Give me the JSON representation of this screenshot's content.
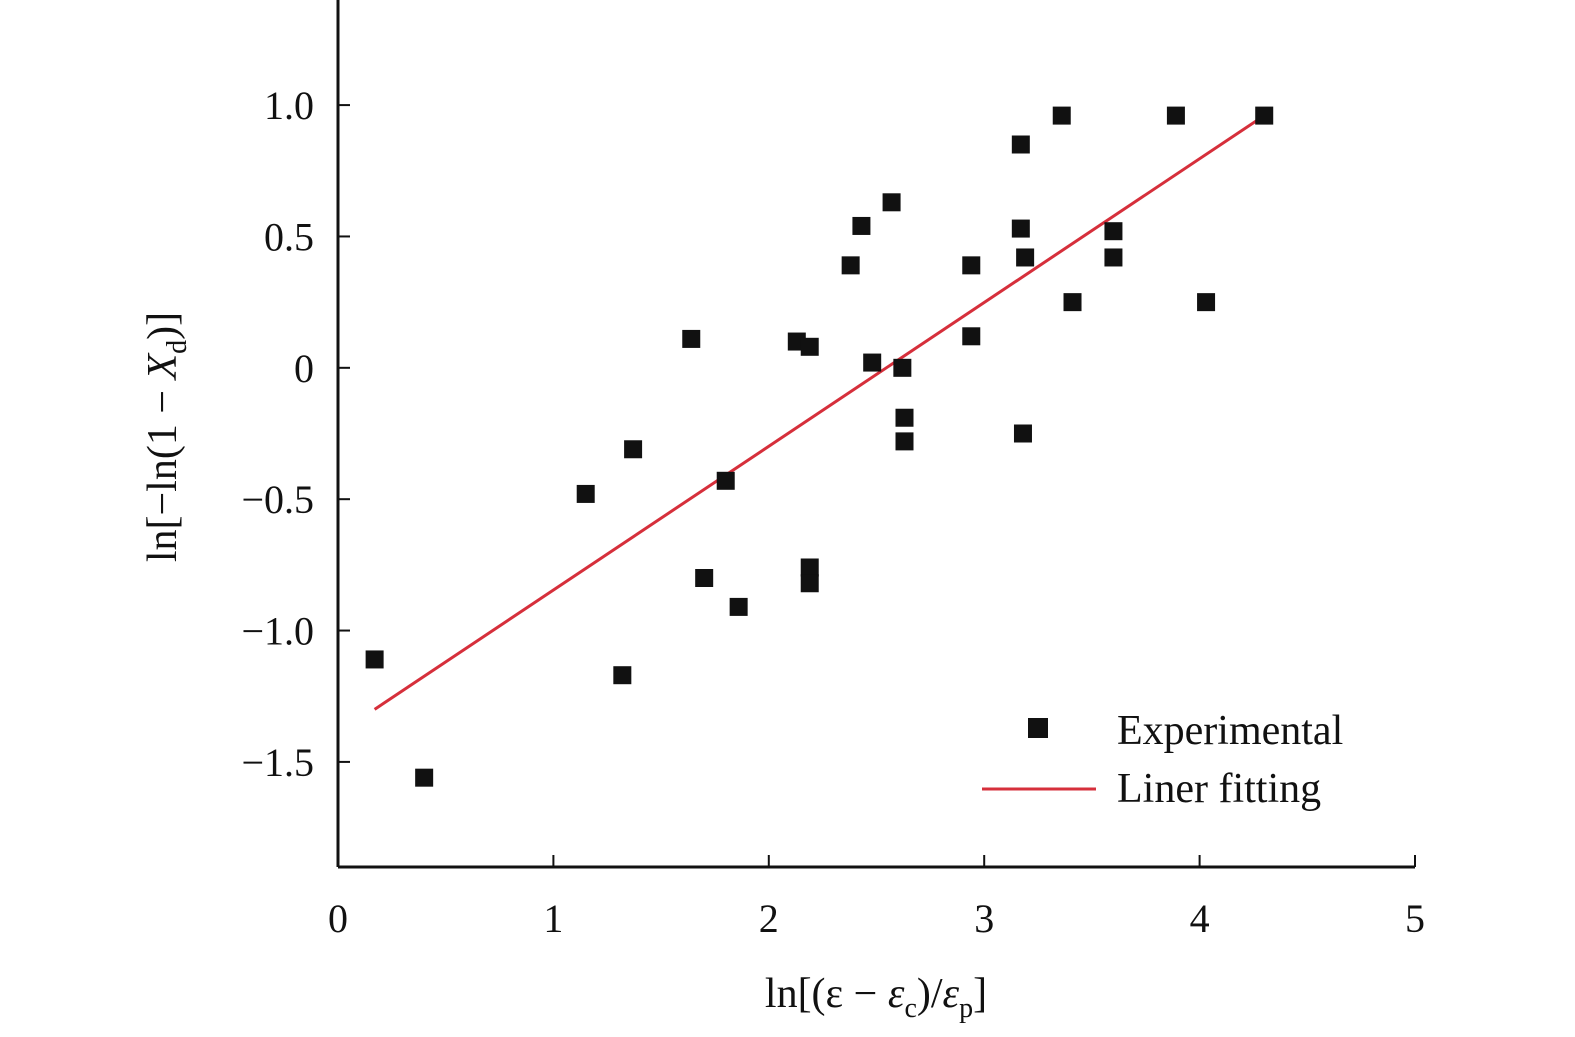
{
  "chart_data": {
    "type": "scatter",
    "title": "",
    "xlabel": {
      "prefix": "ln[(ε − ",
      "eps": "ε",
      "eps_sub_c": "c",
      "middle": ")/",
      "eps2": "ε",
      "eps_sub_p": "p",
      "suffix": "]"
    },
    "ylabel": {
      "prefix": "ln[−ln(1 − ",
      "var": "X",
      "var_sub": "d",
      "suffix": ")]"
    },
    "xlim": [
      0,
      5
    ],
    "ylim": [
      -1.9,
      1.4
    ],
    "xticks": [
      0,
      1,
      2,
      3,
      4,
      5
    ],
    "xtick_labels": [
      "0",
      "1",
      "2",
      "3",
      "4",
      "5"
    ],
    "yticks": [
      1.0,
      0.5,
      0,
      -0.5,
      -1.0,
      -1.5
    ],
    "ytick_labels": [
      "1.0",
      "0.5",
      "0",
      "−0.5",
      "−1.0",
      "−1.5"
    ],
    "grid": false,
    "legend_position": "bottom-right",
    "series": [
      {
        "name": "Experimental",
        "type": "scatter",
        "marker": "square",
        "color": "#111111",
        "points": [
          {
            "x": 0.17,
            "y": -1.11
          },
          {
            "x": 0.4,
            "y": -1.56
          },
          {
            "x": 1.15,
            "y": -0.48
          },
          {
            "x": 1.32,
            "y": -1.17
          },
          {
            "x": 1.37,
            "y": -0.31
          },
          {
            "x": 1.64,
            "y": 0.11
          },
          {
            "x": 1.7,
            "y": -0.8
          },
          {
            "x": 1.8,
            "y": -0.43
          },
          {
            "x": 1.86,
            "y": -0.91
          },
          {
            "x": 2.13,
            "y": 0.1
          },
          {
            "x": 2.19,
            "y": 0.08
          },
          {
            "x": 2.19,
            "y": -0.76
          },
          {
            "x": 2.19,
            "y": -0.82
          },
          {
            "x": 2.38,
            "y": 0.39
          },
          {
            "x": 2.43,
            "y": 0.54
          },
          {
            "x": 2.48,
            "y": 0.02
          },
          {
            "x": 2.57,
            "y": 0.63
          },
          {
            "x": 2.62,
            "y": 0.0
          },
          {
            "x": 2.63,
            "y": -0.19
          },
          {
            "x": 2.63,
            "y": -0.28
          },
          {
            "x": 2.94,
            "y": 0.39
          },
          {
            "x": 2.94,
            "y": 0.12
          },
          {
            "x": 3.17,
            "y": 0.85
          },
          {
            "x": 3.17,
            "y": 0.53
          },
          {
            "x": 3.19,
            "y": 0.42
          },
          {
            "x": 3.18,
            "y": -0.25
          },
          {
            "x": 3.36,
            "y": 0.96
          },
          {
            "x": 3.41,
            "y": 0.25
          },
          {
            "x": 3.6,
            "y": 0.52
          },
          {
            "x": 3.6,
            "y": 0.42
          },
          {
            "x": 3.89,
            "y": 0.96
          },
          {
            "x": 4.03,
            "y": 0.25
          },
          {
            "x": 4.3,
            "y": 0.96
          }
        ]
      },
      {
        "name": "Liner fitting",
        "type": "line",
        "color": "#d62f3b",
        "points": [
          {
            "x": 0.17,
            "y": -1.3
          },
          {
            "x": 4.3,
            "y": 0.96
          }
        ]
      }
    ]
  }
}
